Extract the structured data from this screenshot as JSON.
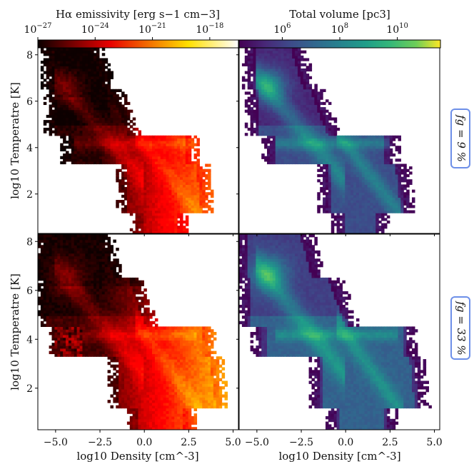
{
  "chart_data": {
    "type": "heatmap",
    "layout": "2x2 phase diagrams",
    "xlabel": "log10 Density [cm^-3]",
    "ylabel": "log10 Temperatre [K]",
    "xlim": [
      -6,
      5.3
    ],
    "ylim": [
      0.3,
      8.3
    ],
    "x_ticks": [
      "−5.0",
      "−2.5",
      "0.0",
      "2.5",
      "5.0"
    ],
    "x_tick_values": [
      -5,
      -2.5,
      0,
      2.5,
      5
    ],
    "y_ticks": [
      "2",
      "4",
      "6",
      "8"
    ],
    "y_tick_values": [
      2,
      4,
      6,
      8
    ],
    "colorbars": [
      {
        "title": "Hα emissivity [erg s−1 cm−3]",
        "colormap": "hot",
        "range_exp": [
          -27,
          -16.5
        ],
        "tick_exps": [
          -27,
          -24,
          -21,
          -18
        ],
        "tick_labels": [
          "10−27",
          "10−24",
          "10−21",
          "10−18"
        ]
      },
      {
        "title": "Total volume [pc3]",
        "colormap": "viridis",
        "range_exp": [
          4.5,
          11.5
        ],
        "tick_exps": [
          6,
          8,
          10
        ],
        "tick_labels": [
          "106",
          "108",
          "1010"
        ]
      }
    ],
    "rows": [
      {
        "label": "fg = 9 %",
        "fg_percent": 9
      },
      {
        "label": "fg = 33 %",
        "fg_percent": 33
      }
    ],
    "panels": [
      {
        "row": 0,
        "col": 0,
        "quantity": "Hα emissivity",
        "fg_percent": 9
      },
      {
        "row": 0,
        "col": 1,
        "quantity": "Total volume",
        "fg_percent": 9
      },
      {
        "row": 1,
        "col": 0,
        "quantity": "Hα emissivity",
        "fg_percent": 33
      },
      {
        "row": 1,
        "col": 1,
        "quantity": "Total volume",
        "fg_percent": 33
      }
    ]
  }
}
